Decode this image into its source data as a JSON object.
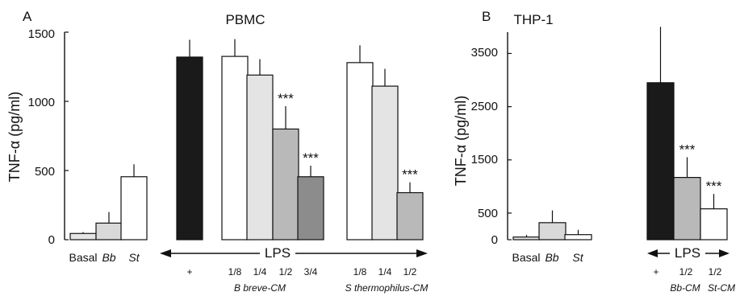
{
  "chart_data": [
    {
      "type": "bar",
      "panel_letter": "A",
      "title": "PBMC",
      "ylabel": "TNF-α (pg/ml)",
      "ylim": [
        0,
        1500
      ],
      "yticks": [
        "0",
        "500",
        "1000",
        "1500"
      ],
      "arrow_label": "LPS",
      "categories": [
        "Basal",
        "Bb",
        "St",
        "+",
        "1/8",
        "1/4",
        "1/2",
        "3/4",
        "1/8",
        "1/4",
        "1/2"
      ],
      "values": [
        45,
        120,
        455,
        1320,
        1325,
        1190,
        800,
        455,
        1280,
        1110,
        340
      ],
      "errors": [
        10,
        80,
        90,
        125,
        125,
        115,
        165,
        80,
        125,
        125,
        75
      ],
      "significance": [
        "",
        "",
        "",
        "",
        "",
        "",
        "***",
        "***",
        "",
        "",
        "***"
      ],
      "fills": [
        "#e4e4e4",
        "#d9d9d9",
        "#ffffff",
        "#1a1a1a",
        "#ffffff",
        "#e4e4e4",
        "#b9b9b9",
        "#8c8c8c",
        "#ffffff",
        "#e4e4e4",
        "#b9b9b9"
      ],
      "group_labels": [
        "B breve-CM",
        "S thermophilus-CM"
      ]
    },
    {
      "type": "bar",
      "panel_letter": "B",
      "title": "THP-1",
      "ylabel": "TNF-α (pg/ml)",
      "ylim": [
        0,
        3900
      ],
      "yticks": [
        "500",
        "1500",
        "2500",
        "3500"
      ],
      "zero_label": "0",
      "arrow_label": "LPS",
      "categories": [
        "Basal",
        "Bb",
        "St",
        "+",
        "1/2",
        "1/2"
      ],
      "values": [
        50,
        320,
        95,
        2950,
        1170,
        580
      ],
      "errors": [
        40,
        230,
        90,
        1050,
        380,
        280
      ],
      "significance": [
        "",
        "",
        "",
        "",
        "***",
        "***"
      ],
      "fills": [
        "#e4e4e4",
        "#d9d9d9",
        "#ffffff",
        "#1a1a1a",
        "#b9b9b9",
        "#ffffff"
      ],
      "group_labels": [
        "Bb-CM",
        "St-CM"
      ]
    }
  ]
}
